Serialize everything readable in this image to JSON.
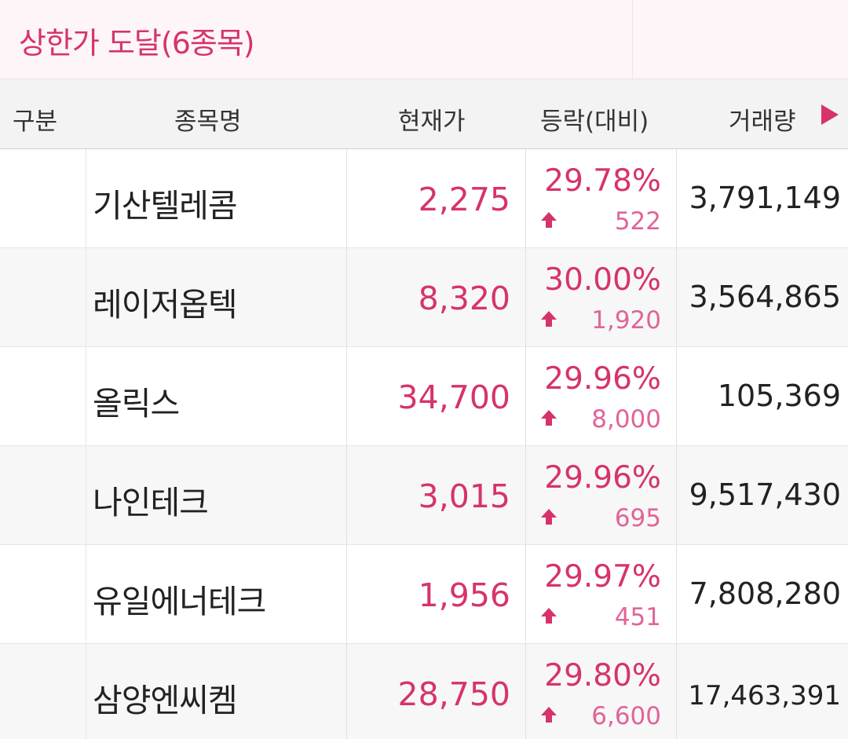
{
  "title": "상한가 도달(6종목)",
  "columns": {
    "category": "구분",
    "name": "종목명",
    "price": "현재가",
    "change": "등락(대비)",
    "volume": "거래량"
  },
  "colors": {
    "accent": "#d6336c",
    "diff": "#e0649a"
  },
  "stocks": [
    {
      "category": "",
      "name": "기산텔레콤",
      "price": "2,275",
      "rate": "29.78%",
      "diff": "522",
      "volume": "3,791,149"
    },
    {
      "category": "",
      "name": "레이저옵텍",
      "price": "8,320",
      "rate": "30.00%",
      "diff": "1,920",
      "volume": "3,564,865"
    },
    {
      "category": "",
      "name": "올릭스",
      "price": "34,700",
      "rate": "29.96%",
      "diff": "8,000",
      "volume": "105,369"
    },
    {
      "category": "",
      "name": "나인테크",
      "price": "3,015",
      "rate": "29.96%",
      "diff": "695",
      "volume": "9,517,430"
    },
    {
      "category": "",
      "name": "유일에너테크",
      "price": "1,956",
      "rate": "29.97%",
      "diff": "451",
      "volume": "7,808,280"
    },
    {
      "category": "",
      "name": "삼양엔씨켐",
      "price": "28,750",
      "rate": "29.80%",
      "diff": "6,600",
      "volume": "17,463,391"
    }
  ]
}
